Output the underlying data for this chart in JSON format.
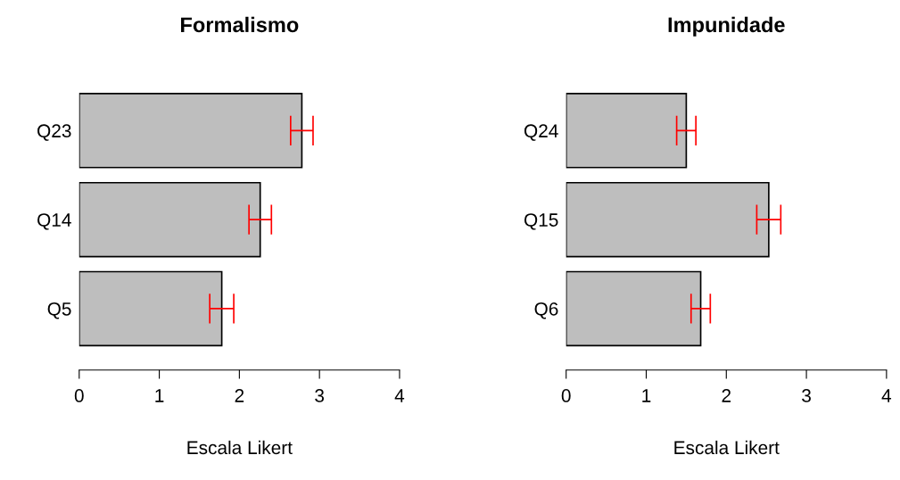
{
  "chart_data": [
    {
      "type": "bar",
      "orientation": "horizontal",
      "title": "Formalismo",
      "xlabel": "Escala Likert",
      "categories": [
        "Q23",
        "Q14",
        "Q5"
      ],
      "values": [
        2.78,
        2.26,
        1.78
      ],
      "errors": [
        0.14,
        0.14,
        0.15
      ],
      "color": "#bebebe",
      "xlim": [
        0,
        4
      ],
      "xticks": [
        0,
        1,
        2,
        3,
        4
      ],
      "grid": false,
      "legend": false
    },
    {
      "type": "bar",
      "orientation": "horizontal",
      "title": "Impunidade",
      "xlabel": "Escala Likert",
      "categories": [
        "Q24",
        "Q15",
        "Q6"
      ],
      "values": [
        1.5,
        2.53,
        1.68
      ],
      "errors": [
        0.12,
        0.15,
        0.12
      ],
      "color": "#bebebe",
      "xlim": [
        0,
        4
      ],
      "xticks": [
        0,
        1,
        2,
        3,
        4
      ],
      "grid": false,
      "legend": false
    }
  ]
}
